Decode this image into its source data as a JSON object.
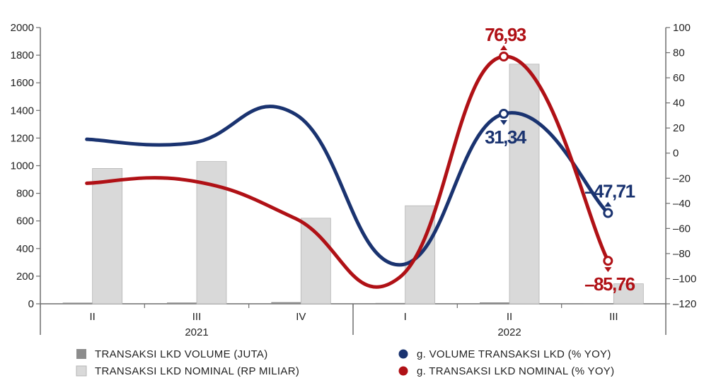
{
  "chart_data": {
    "type": "bar+line",
    "categories": [
      "II",
      "III",
      "IV",
      "I",
      "II",
      "III"
    ],
    "years": [
      {
        "label": "2021",
        "span": [
          0,
          2
        ]
      },
      {
        "label": "2022",
        "span": [
          3,
          5
        ]
      }
    ],
    "left_axis": {
      "min": 0,
      "max": 2000,
      "ticks": [
        "0",
        "200",
        "400",
        "600",
        "800",
        "1000",
        "1200",
        "1400",
        "1600",
        "1800",
        "2000"
      ]
    },
    "right_axis": {
      "min": -120,
      "max": 100,
      "ticks": [
        "-120",
        "-100",
        "-80",
        "-60",
        "-40",
        "-20",
        "0",
        "20",
        "40",
        "60",
        "80",
        "100"
      ]
    },
    "bar_series": [
      {
        "name": "TRANSAKSI LKD VOLUME (JUTA)",
        "color": "#8c8c8c",
        "values": [
          8,
          9,
          12,
          6,
          10,
          4
        ]
      },
      {
        "name": "TRANSAKSI LKD NOMINAL (RP MILIAR)",
        "color": "#d9d9d9",
        "values": [
          980,
          1030,
          620,
          710,
          1735,
          145
        ]
      }
    ],
    "line_series": [
      {
        "name": "g. VOLUME TRANSAKSI LKD (% YOY)",
        "color": "#1a3370",
        "axis": "right",
        "values": [
          11,
          8,
          31,
          -89,
          31.34,
          -47.71
        ],
        "labels": [
          {
            "index": 4,
            "text": "31,34",
            "arrow": "down"
          },
          {
            "index": 5,
            "text": "-47,71",
            "arrow": "up"
          }
        ]
      },
      {
        "name": "g. TRANSAKSI LKD NOMINAL (% YOY)",
        "color": "#b01116",
        "axis": "right",
        "values": [
          -24,
          -22,
          -52,
          -99,
          76.93,
          -85.76
        ],
        "labels": [
          {
            "index": 4,
            "text": "76,93",
            "arrow": "up"
          },
          {
            "index": 5,
            "text": "-85,76",
            "arrow": "down"
          }
        ]
      }
    ]
  }
}
